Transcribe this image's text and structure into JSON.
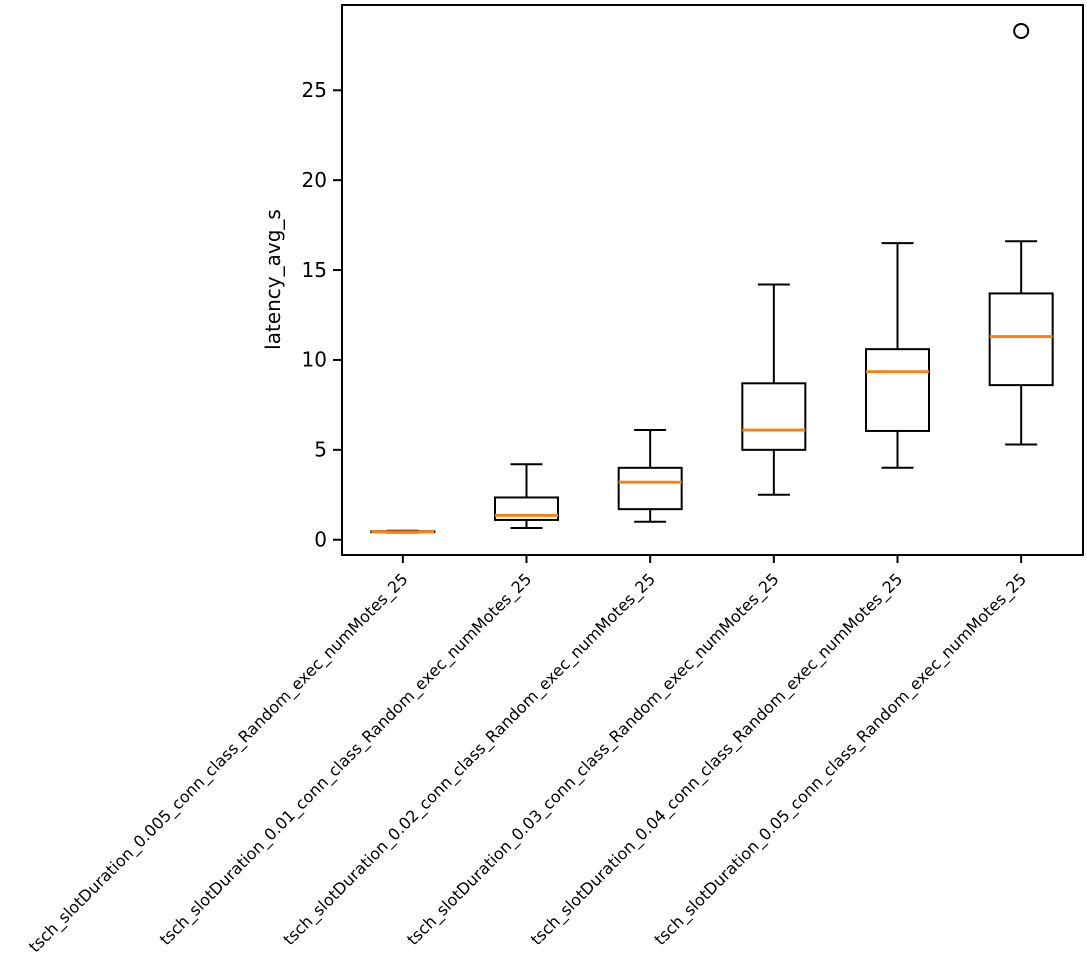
{
  "figure": {
    "background": "#ffffff"
  },
  "chart_data": {
    "type": "box",
    "title": "",
    "xlabel": "",
    "ylabel": "latency_avg_s",
    "ylim": [
      -0.85,
      29.8
    ],
    "yticks": [
      0,
      5,
      10,
      15,
      20,
      25
    ],
    "grid": false,
    "legend": null,
    "tick_label_rotation_deg": 45,
    "categories": [
      "tsch_slotDuration_0.005_conn_class_Random_exec_numMotes_25",
      "tsch_slotDuration_0.01_conn_class_Random_exec_numMotes_25",
      "tsch_slotDuration_0.02_conn_class_Random_exec_numMotes_25",
      "tsch_slotDuration_0.03_conn_class_Random_exec_numMotes_25",
      "tsch_slotDuration_0.04_conn_class_Random_exec_numMotes_25",
      "tsch_slotDuration_0.05_conn_class_Random_exec_numMotes_25"
    ],
    "boxes": [
      {
        "label": "tsch_slotDuration_0.005_conn_class_Random_exec_numMotes_25",
        "whislo": 0.4,
        "q1": 0.42,
        "med": 0.44,
        "q3": 0.47,
        "whishi": 0.5,
        "fliers": []
      },
      {
        "label": "tsch_slotDuration_0.01_conn_class_Random_exec_numMotes_25",
        "whislo": 0.65,
        "q1": 1.1,
        "med": 1.35,
        "q3": 2.35,
        "whishi": 4.2,
        "fliers": []
      },
      {
        "label": "tsch_slotDuration_0.02_conn_class_Random_exec_numMotes_25",
        "whislo": 1.0,
        "q1": 1.7,
        "med": 3.2,
        "q3": 4.0,
        "whishi": 6.1,
        "fliers": []
      },
      {
        "label": "tsch_slotDuration_0.03_conn_class_Random_exec_numMotes_25",
        "whislo": 2.5,
        "q1": 5.0,
        "med": 6.1,
        "q3": 8.7,
        "whishi": 14.2,
        "fliers": []
      },
      {
        "label": "tsch_slotDuration_0.04_conn_class_Random_exec_numMotes_25",
        "whislo": 4.0,
        "q1": 6.05,
        "med": 9.35,
        "q3": 10.6,
        "whishi": 16.5,
        "fliers": []
      },
      {
        "label": "tsch_slotDuration_0.05_conn_class_Random_exec_numMotes_25",
        "whislo": 5.3,
        "q1": 8.6,
        "med": 11.3,
        "q3": 13.7,
        "whishi": 16.6,
        "fliers": [
          28.3
        ]
      }
    ],
    "colors": {
      "median": "#ff7f0e",
      "box_edge": "#000000",
      "whisker": "#000000",
      "flier_edge": "#000000",
      "axis": "#000000",
      "text": "#000000",
      "background": "#ffffff"
    }
  }
}
